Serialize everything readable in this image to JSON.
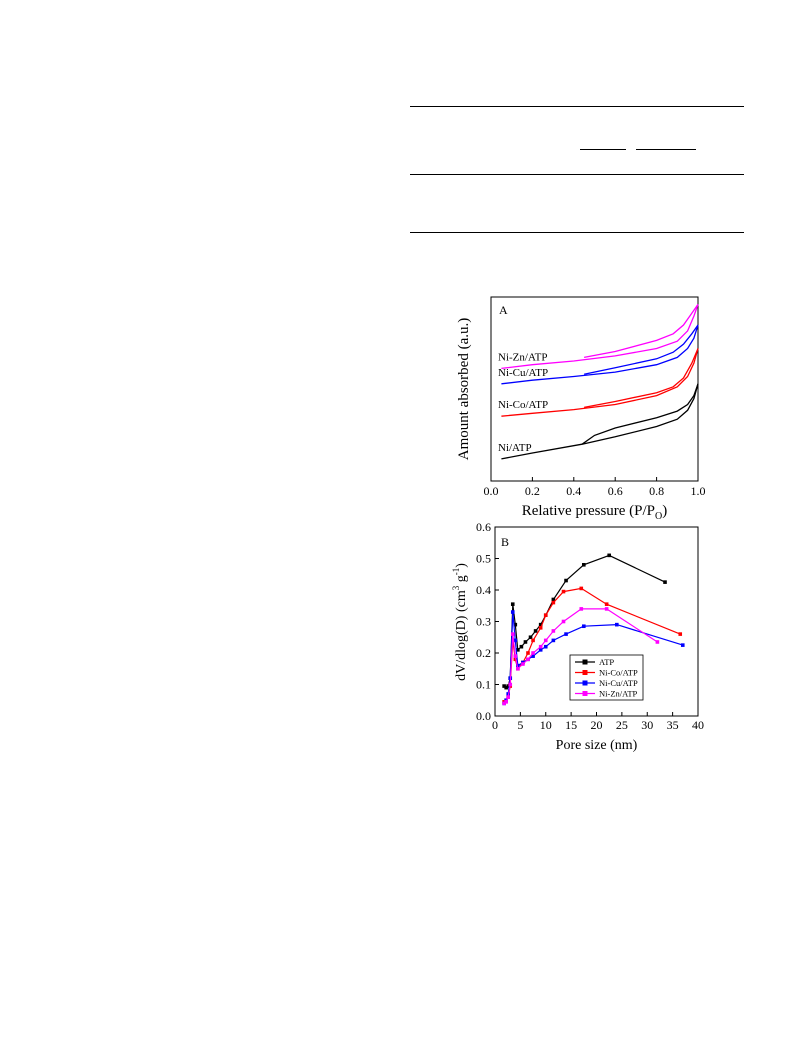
{
  "chart_data": [
    {
      "type": "line",
      "panel_label": "A",
      "xlabel": "Relative pressure (P/P",
      "xlabel_sub": "O",
      "xlabel_end": ")",
      "ylabel": "Amount absorbed (a.u.)",
      "xlim": [
        0.0,
        1.0
      ],
      "xticks": [
        "0.0",
        "0.2",
        "0.4",
        "0.6",
        "0.8",
        "1.0"
      ],
      "series": [
        {
          "name": "Ni-Zn/ATP",
          "color": "#ff00ff",
          "adsorption": [
            [
              0.05,
              0.765
            ],
            [
              0.2,
              0.79
            ],
            [
              0.4,
              0.815
            ],
            [
              0.6,
              0.85
            ],
            [
              0.8,
              0.9
            ],
            [
              0.9,
              0.95
            ],
            [
              0.95,
              1.02
            ],
            [
              0.98,
              1.12
            ],
            [
              1.0,
              1.2
            ]
          ],
          "desorption": [
            [
              1.0,
              1.2
            ],
            [
              0.97,
              1.14
            ],
            [
              0.93,
              1.06
            ],
            [
              0.88,
              1.0
            ],
            [
              0.8,
              0.955
            ],
            [
              0.6,
              0.88
            ],
            [
              0.45,
              0.84
            ]
          ]
        },
        {
          "name": "Ni-Cu/ATP",
          "color": "#0000ff",
          "adsorption": [
            [
              0.05,
              0.66
            ],
            [
              0.2,
              0.685
            ],
            [
              0.4,
              0.71
            ],
            [
              0.6,
              0.74
            ],
            [
              0.8,
              0.79
            ],
            [
              0.9,
              0.84
            ],
            [
              0.95,
              0.9
            ],
            [
              0.98,
              0.97
            ],
            [
              1.0,
              1.06
            ]
          ],
          "desorption": [
            [
              1.0,
              1.06
            ],
            [
              0.97,
              1.0
            ],
            [
              0.93,
              0.93
            ],
            [
              0.88,
              0.875
            ],
            [
              0.8,
              0.83
            ],
            [
              0.6,
              0.77
            ],
            [
              0.45,
              0.725
            ]
          ]
        },
        {
          "name": "Ni-Co/ATP",
          "color": "#ff0000",
          "adsorption": [
            [
              0.05,
              0.44
            ],
            [
              0.2,
              0.46
            ],
            [
              0.4,
              0.485
            ],
            [
              0.6,
              0.52
            ],
            [
              0.8,
              0.58
            ],
            [
              0.9,
              0.64
            ],
            [
              0.95,
              0.71
            ],
            [
              0.98,
              0.8
            ],
            [
              1.0,
              0.9
            ]
          ],
          "desorption": [
            [
              1.0,
              0.9
            ],
            [
              0.97,
              0.8
            ],
            [
              0.93,
              0.7
            ],
            [
              0.88,
              0.64
            ],
            [
              0.8,
              0.6
            ],
            [
              0.6,
              0.54
            ],
            [
              0.45,
              0.5
            ]
          ]
        },
        {
          "name": "Ni/ATP",
          "color": "#000000",
          "adsorption": [
            [
              0.05,
              0.15
            ],
            [
              0.2,
              0.19
            ],
            [
              0.44,
              0.25
            ],
            [
              0.6,
              0.3
            ],
            [
              0.8,
              0.37
            ],
            [
              0.9,
              0.42
            ],
            [
              0.95,
              0.48
            ],
            [
              0.98,
              0.56
            ],
            [
              1.0,
              0.66
            ]
          ],
          "desorption": [
            [
              1.0,
              0.66
            ],
            [
              0.98,
              0.58
            ],
            [
              0.95,
              0.52
            ],
            [
              0.9,
              0.475
            ],
            [
              0.8,
              0.43
            ],
            [
              0.6,
              0.36
            ],
            [
              0.5,
              0.31
            ],
            [
              0.44,
              0.25
            ]
          ]
        }
      ]
    },
    {
      "type": "line",
      "panel_label": "B",
      "xlabel": "Pore size (nm)",
      "ylabel": "dV/dlog(D) (cm",
      "ylabel_sup1": "3",
      "ylabel_mid": " g",
      "ylabel_sup2": "-1",
      "ylabel_end": ")",
      "xlim": [
        0,
        40
      ],
      "ylim": [
        0.0,
        0.6
      ],
      "xticks": [
        "0",
        "5",
        "10",
        "15",
        "20",
        "25",
        "30",
        "35",
        "40"
      ],
      "yticks": [
        "0.0",
        "0.1",
        "0.2",
        "0.3",
        "0.4",
        "0.5",
        "0.6"
      ],
      "legend_position": "lower-right",
      "series": [
        {
          "name": "ATP",
          "color": "#000000",
          "points": [
            [
              1.8,
              0.095
            ],
            [
              2.2,
              0.09
            ],
            [
              2.6,
              0.095
            ],
            [
              3.0,
              0.12
            ],
            [
              3.5,
              0.355
            ],
            [
              4.0,
              0.29
            ],
            [
              4.5,
              0.21
            ],
            [
              5.2,
              0.22
            ],
            [
              6.0,
              0.235
            ],
            [
              7.0,
              0.25
            ],
            [
              8.0,
              0.27
            ],
            [
              9.0,
              0.29
            ],
            [
              10.0,
              0.32
            ],
            [
              11.5,
              0.37
            ],
            [
              14.0,
              0.43
            ],
            [
              17.5,
              0.48
            ],
            [
              22.5,
              0.51
            ],
            [
              33.5,
              0.425
            ]
          ]
        },
        {
          "name": "Ni-Co/ATP",
          "color": "#ff0000",
          "points": [
            [
              1.8,
              0.045
            ],
            [
              2.2,
              0.05
            ],
            [
              2.6,
              0.06
            ],
            [
              3.0,
              0.095
            ],
            [
              3.5,
              0.24
            ],
            [
              4.0,
              0.18
            ],
            [
              4.5,
              0.15
            ],
            [
              5.5,
              0.17
            ],
            [
              6.5,
              0.2
            ],
            [
              7.5,
              0.24
            ],
            [
              9.0,
              0.28
            ],
            [
              10.0,
              0.32
            ],
            [
              11.5,
              0.36
            ],
            [
              13.5,
              0.395
            ],
            [
              17.0,
              0.405
            ],
            [
              22.0,
              0.355
            ],
            [
              36.5,
              0.26
            ]
          ]
        },
        {
          "name": "Ni-Cu/ATP",
          "color": "#0000ff",
          "points": [
            [
              1.8,
              0.04
            ],
            [
              2.2,
              0.05
            ],
            [
              2.6,
              0.07
            ],
            [
              3.0,
              0.12
            ],
            [
              3.5,
              0.33
            ],
            [
              4.0,
              0.24
            ],
            [
              4.5,
              0.16
            ],
            [
              5.5,
              0.17
            ],
            [
              6.5,
              0.18
            ],
            [
              7.5,
              0.19
            ],
            [
              9.0,
              0.21
            ],
            [
              10.0,
              0.22
            ],
            [
              11.5,
              0.24
            ],
            [
              14.0,
              0.26
            ],
            [
              17.5,
              0.285
            ],
            [
              24.0,
              0.29
            ],
            [
              37.0,
              0.225
            ]
          ]
        },
        {
          "name": "Ni-Zn/ATP",
          "color": "#ff00ff",
          "points": [
            [
              1.8,
              0.04
            ],
            [
              2.2,
              0.045
            ],
            [
              2.6,
              0.06
            ],
            [
              3.0,
              0.1
            ],
            [
              3.5,
              0.26
            ],
            [
              4.0,
              0.19
            ],
            [
              4.5,
              0.15
            ],
            [
              5.5,
              0.165
            ],
            [
              6.5,
              0.18
            ],
            [
              7.5,
              0.2
            ],
            [
              9.0,
              0.22
            ],
            [
              10.0,
              0.24
            ],
            [
              11.5,
              0.27
            ],
            [
              13.5,
              0.3
            ],
            [
              17.0,
              0.34
            ],
            [
              22.0,
              0.34
            ],
            [
              32.0,
              0.235
            ]
          ]
        }
      ]
    }
  ]
}
